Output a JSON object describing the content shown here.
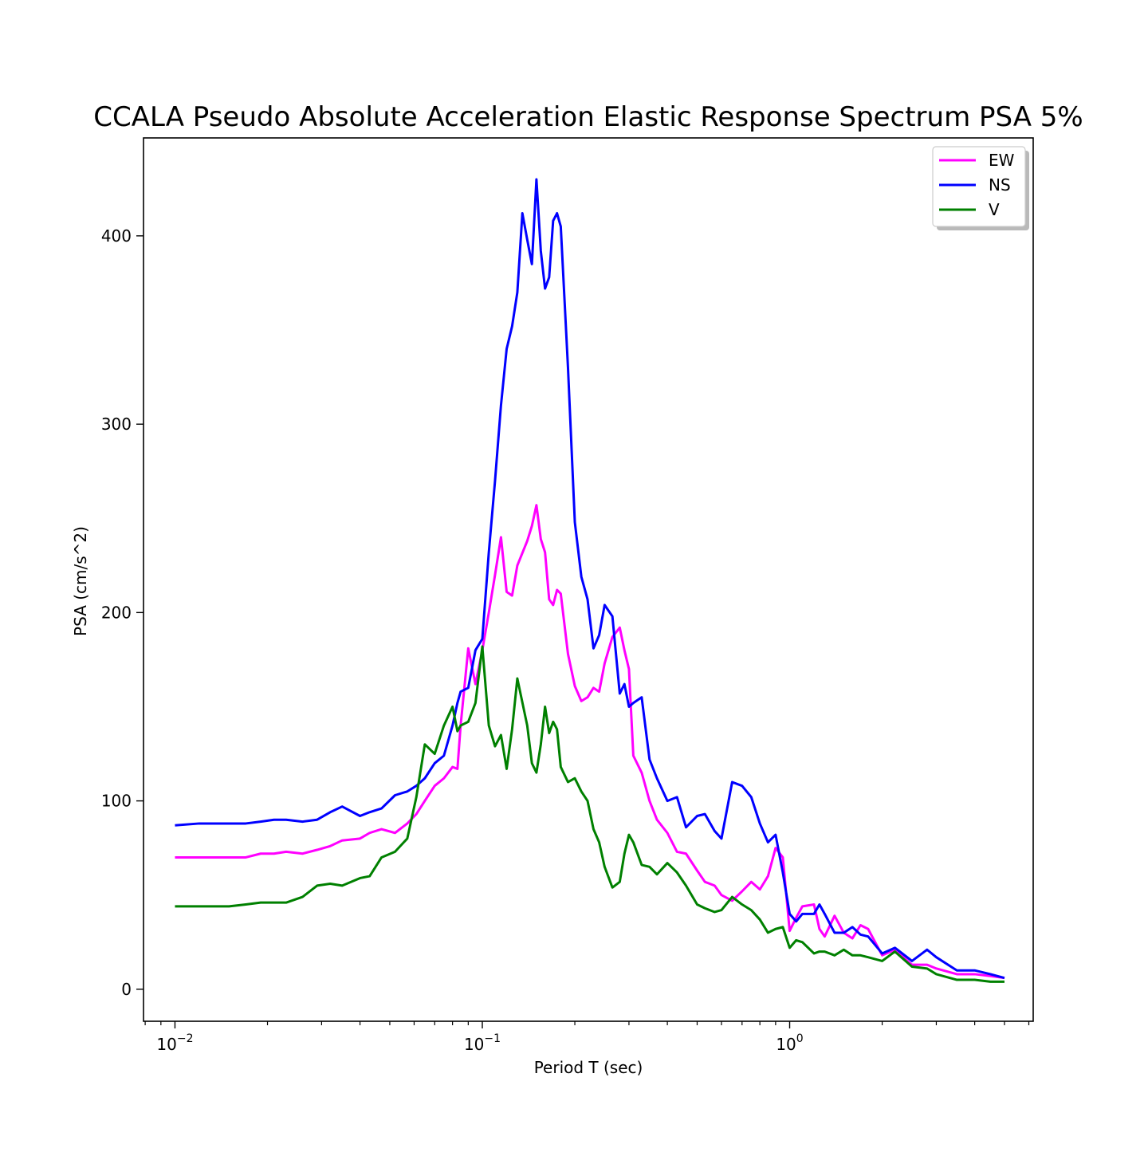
{
  "chart_data": {
    "type": "line",
    "title": "CCALA Pseudo Absolute Acceleration Elastic Response Spectrum PSA 5%",
    "xlabel": "Period T (sec)",
    "ylabel": "PSA (cm/s^2)",
    "xscale": "log",
    "xlim": [
      0.0079,
      6.2
    ],
    "ylim": [
      -17,
      452
    ],
    "x_ticks": [
      {
        "value": 0.01,
        "base": "10",
        "exp": "−2"
      },
      {
        "value": 0.1,
        "base": "10",
        "exp": "−1"
      },
      {
        "value": 1,
        "base": "10",
        "exp": "0"
      }
    ],
    "y_ticks": [
      0,
      100,
      200,
      300,
      400
    ],
    "grid": false,
    "legend_position": "top-right",
    "series": [
      {
        "name": "EW",
        "color": "#ff00ff",
        "points": [
          [
            0.01,
            70
          ],
          [
            0.012,
            70
          ],
          [
            0.015,
            70
          ],
          [
            0.017,
            70
          ],
          [
            0.019,
            72
          ],
          [
            0.021,
            72
          ],
          [
            0.023,
            73
          ],
          [
            0.026,
            72
          ],
          [
            0.029,
            74
          ],
          [
            0.032,
            76
          ],
          [
            0.035,
            79
          ],
          [
            0.04,
            80
          ],
          [
            0.043,
            83
          ],
          [
            0.047,
            85
          ],
          [
            0.052,
            83
          ],
          [
            0.057,
            88
          ],
          [
            0.061,
            93
          ],
          [
            0.065,
            100
          ],
          [
            0.07,
            108
          ],
          [
            0.075,
            112
          ],
          [
            0.08,
            118
          ],
          [
            0.083,
            117
          ],
          [
            0.085,
            140
          ],
          [
            0.09,
            181
          ],
          [
            0.095,
            162
          ],
          [
            0.1,
            180
          ],
          [
            0.105,
            200
          ],
          [
            0.11,
            220
          ],
          [
            0.115,
            240
          ],
          [
            0.12,
            211
          ],
          [
            0.125,
            209
          ],
          [
            0.13,
            225
          ],
          [
            0.14,
            238
          ],
          [
            0.145,
            246
          ],
          [
            0.15,
            257
          ],
          [
            0.155,
            239
          ],
          [
            0.16,
            232
          ],
          [
            0.165,
            207
          ],
          [
            0.17,
            204
          ],
          [
            0.175,
            212
          ],
          [
            0.18,
            210
          ],
          [
            0.19,
            178
          ],
          [
            0.2,
            161
          ],
          [
            0.21,
            153
          ],
          [
            0.22,
            155
          ],
          [
            0.23,
            160
          ],
          [
            0.24,
            158
          ],
          [
            0.25,
            173
          ],
          [
            0.265,
            187
          ],
          [
            0.28,
            192
          ],
          [
            0.29,
            180
          ],
          [
            0.3,
            170
          ],
          [
            0.31,
            124
          ],
          [
            0.33,
            115
          ],
          [
            0.35,
            100
          ],
          [
            0.37,
            90
          ],
          [
            0.4,
            83
          ],
          [
            0.43,
            73
          ],
          [
            0.46,
            72
          ],
          [
            0.5,
            63
          ],
          [
            0.53,
            57
          ],
          [
            0.57,
            55
          ],
          [
            0.6,
            50
          ],
          [
            0.65,
            47
          ],
          [
            0.7,
            52
          ],
          [
            0.75,
            57
          ],
          [
            0.8,
            53
          ],
          [
            0.85,
            60
          ],
          [
            0.9,
            75
          ],
          [
            0.95,
            70
          ],
          [
            1.0,
            31
          ],
          [
            1.05,
            38
          ],
          [
            1.1,
            44
          ],
          [
            1.2,
            45
          ],
          [
            1.25,
            32
          ],
          [
            1.3,
            28
          ],
          [
            1.4,
            39
          ],
          [
            1.5,
            30
          ],
          [
            1.6,
            27
          ],
          [
            1.7,
            34
          ],
          [
            1.8,
            32
          ],
          [
            2.0,
            18
          ],
          [
            2.2,
            21
          ],
          [
            2.5,
            13
          ],
          [
            2.8,
            13
          ],
          [
            3.0,
            11
          ],
          [
            3.5,
            8
          ],
          [
            4.0,
            8
          ],
          [
            4.5,
            7
          ],
          [
            5.0,
            6
          ]
        ]
      },
      {
        "name": "NS",
        "color": "#0000ff",
        "points": [
          [
            0.01,
            87
          ],
          [
            0.012,
            88
          ],
          [
            0.015,
            88
          ],
          [
            0.017,
            88
          ],
          [
            0.019,
            89
          ],
          [
            0.021,
            90
          ],
          [
            0.023,
            90
          ],
          [
            0.026,
            89
          ],
          [
            0.029,
            90
          ],
          [
            0.032,
            94
          ],
          [
            0.035,
            97
          ],
          [
            0.04,
            92
          ],
          [
            0.043,
            94
          ],
          [
            0.047,
            96
          ],
          [
            0.052,
            103
          ],
          [
            0.057,
            105
          ],
          [
            0.061,
            108
          ],
          [
            0.065,
            112
          ],
          [
            0.07,
            120
          ],
          [
            0.075,
            124
          ],
          [
            0.08,
            140
          ],
          [
            0.083,
            152
          ],
          [
            0.085,
            158
          ],
          [
            0.09,
            160
          ],
          [
            0.095,
            180
          ],
          [
            0.1,
            186
          ],
          [
            0.105,
            232
          ],
          [
            0.11,
            270
          ],
          [
            0.115,
            310
          ],
          [
            0.12,
            340
          ],
          [
            0.125,
            352
          ],
          [
            0.13,
            370
          ],
          [
            0.135,
            412
          ],
          [
            0.14,
            398
          ],
          [
            0.145,
            385
          ],
          [
            0.15,
            430
          ],
          [
            0.155,
            392
          ],
          [
            0.16,
            372
          ],
          [
            0.165,
            378
          ],
          [
            0.17,
            408
          ],
          [
            0.175,
            412
          ],
          [
            0.18,
            405
          ],
          [
            0.19,
            330
          ],
          [
            0.2,
            248
          ],
          [
            0.21,
            219
          ],
          [
            0.22,
            207
          ],
          [
            0.23,
            181
          ],
          [
            0.24,
            188
          ],
          [
            0.25,
            204
          ],
          [
            0.265,
            198
          ],
          [
            0.28,
            157
          ],
          [
            0.29,
            162
          ],
          [
            0.3,
            150
          ],
          [
            0.31,
            152
          ],
          [
            0.33,
            155
          ],
          [
            0.35,
            122
          ],
          [
            0.37,
            112
          ],
          [
            0.4,
            100
          ],
          [
            0.43,
            102
          ],
          [
            0.46,
            86
          ],
          [
            0.5,
            92
          ],
          [
            0.53,
            93
          ],
          [
            0.57,
            84
          ],
          [
            0.6,
            80
          ],
          [
            0.65,
            110
          ],
          [
            0.7,
            108
          ],
          [
            0.75,
            102
          ],
          [
            0.8,
            88
          ],
          [
            0.85,
            78
          ],
          [
            0.9,
            82
          ],
          [
            0.95,
            62
          ],
          [
            1.0,
            40
          ],
          [
            1.05,
            36
          ],
          [
            1.1,
            40
          ],
          [
            1.2,
            40
          ],
          [
            1.25,
            45
          ],
          [
            1.3,
            40
          ],
          [
            1.4,
            30
          ],
          [
            1.5,
            30
          ],
          [
            1.6,
            33
          ],
          [
            1.7,
            29
          ],
          [
            1.8,
            28
          ],
          [
            2.0,
            19
          ],
          [
            2.2,
            22
          ],
          [
            2.5,
            15
          ],
          [
            2.8,
            21
          ],
          [
            3.0,
            17
          ],
          [
            3.5,
            10
          ],
          [
            4.0,
            10
          ],
          [
            4.5,
            8
          ],
          [
            5.0,
            6
          ]
        ]
      },
      {
        "name": "V",
        "color": "#008000",
        "points": [
          [
            0.01,
            44
          ],
          [
            0.012,
            44
          ],
          [
            0.015,
            44
          ],
          [
            0.017,
            45
          ],
          [
            0.019,
            46
          ],
          [
            0.021,
            46
          ],
          [
            0.023,
            46
          ],
          [
            0.026,
            49
          ],
          [
            0.029,
            55
          ],
          [
            0.032,
            56
          ],
          [
            0.035,
            55
          ],
          [
            0.04,
            59
          ],
          [
            0.043,
            60
          ],
          [
            0.047,
            70
          ],
          [
            0.052,
            73
          ],
          [
            0.057,
            80
          ],
          [
            0.061,
            102
          ],
          [
            0.065,
            130
          ],
          [
            0.07,
            125
          ],
          [
            0.075,
            140
          ],
          [
            0.08,
            150
          ],
          [
            0.083,
            137
          ],
          [
            0.085,
            140
          ],
          [
            0.09,
            142
          ],
          [
            0.095,
            152
          ],
          [
            0.1,
            182
          ],
          [
            0.105,
            140
          ],
          [
            0.11,
            129
          ],
          [
            0.115,
            135
          ],
          [
            0.12,
            117
          ],
          [
            0.125,
            138
          ],
          [
            0.13,
            165
          ],
          [
            0.14,
            140
          ],
          [
            0.145,
            120
          ],
          [
            0.15,
            115
          ],
          [
            0.155,
            130
          ],
          [
            0.16,
            150
          ],
          [
            0.165,
            136
          ],
          [
            0.17,
            142
          ],
          [
            0.175,
            138
          ],
          [
            0.18,
            118
          ],
          [
            0.19,
            110
          ],
          [
            0.2,
            112
          ],
          [
            0.21,
            105
          ],
          [
            0.22,
            100
          ],
          [
            0.23,
            85
          ],
          [
            0.24,
            78
          ],
          [
            0.25,
            65
          ],
          [
            0.265,
            54
          ],
          [
            0.28,
            57
          ],
          [
            0.29,
            72
          ],
          [
            0.3,
            82
          ],
          [
            0.31,
            78
          ],
          [
            0.33,
            66
          ],
          [
            0.35,
            65
          ],
          [
            0.37,
            61
          ],
          [
            0.4,
            67
          ],
          [
            0.43,
            62
          ],
          [
            0.46,
            55
          ],
          [
            0.5,
            45
          ],
          [
            0.53,
            43
          ],
          [
            0.57,
            41
          ],
          [
            0.6,
            42
          ],
          [
            0.65,
            49
          ],
          [
            0.7,
            45
          ],
          [
            0.75,
            42
          ],
          [
            0.8,
            37
          ],
          [
            0.85,
            30
          ],
          [
            0.9,
            32
          ],
          [
            0.95,
            33
          ],
          [
            1.0,
            22
          ],
          [
            1.05,
            26
          ],
          [
            1.1,
            25
          ],
          [
            1.2,
            19
          ],
          [
            1.25,
            20
          ],
          [
            1.3,
            20
          ],
          [
            1.4,
            18
          ],
          [
            1.5,
            21
          ],
          [
            1.6,
            18
          ],
          [
            1.7,
            18
          ],
          [
            1.8,
            17
          ],
          [
            2.0,
            15
          ],
          [
            2.2,
            20
          ],
          [
            2.5,
            12
          ],
          [
            2.8,
            11
          ],
          [
            3.0,
            8
          ],
          [
            3.5,
            5
          ],
          [
            4.0,
            5
          ],
          [
            4.5,
            4
          ],
          [
            5.0,
            4
          ]
        ]
      }
    ]
  }
}
